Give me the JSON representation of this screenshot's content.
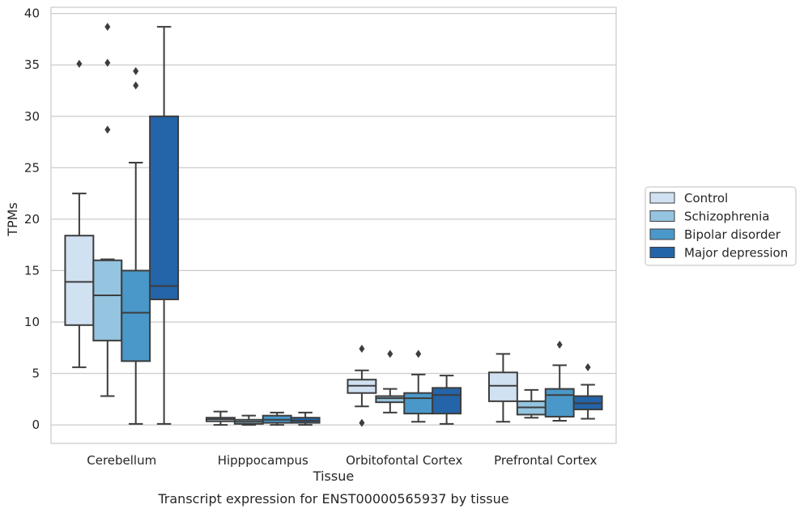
{
  "chart_data": {
    "type": "box",
    "title": "",
    "caption": "Transcript expression for ENST00000565937 by tissue",
    "xlabel": "Tissue",
    "ylabel": "TPMs",
    "ylim": [
      -1.8,
      40.6
    ],
    "yticks": [
      0,
      5,
      10,
      15,
      20,
      25,
      30,
      35,
      40
    ],
    "grid": "horizontal",
    "legend_position": "right",
    "categories": [
      "Cerebellum",
      "Hipppocampus",
      "Orbitofontal Cortex",
      "Prefrontal Cortex"
    ],
    "series": [
      {
        "name": "Control",
        "color": "#d0e1f2",
        "boxes": [
          {
            "whislo": 5.6,
            "q1": 9.7,
            "med": 13.9,
            "q3": 18.4,
            "whishi": 22.5,
            "fliers": [
              35.1
            ]
          },
          {
            "whislo": 0.0,
            "q1": 0.35,
            "med": 0.55,
            "q3": 0.7,
            "whishi": 1.3,
            "fliers": []
          },
          {
            "whislo": 1.8,
            "q1": 3.1,
            "med": 3.8,
            "q3": 4.4,
            "whishi": 5.3,
            "fliers": [
              7.4,
              0.2
            ]
          },
          {
            "whislo": 0.3,
            "q1": 2.3,
            "med": 3.8,
            "q3": 5.1,
            "whishi": 6.9,
            "fliers": []
          }
        ]
      },
      {
        "name": "Schizophrenia",
        "color": "#94c4df",
        "boxes": [
          {
            "whislo": 2.8,
            "q1": 8.2,
            "med": 12.6,
            "q3": 16.0,
            "whishi": 16.1,
            "fliers": [
              38.7,
              35.2,
              28.7
            ]
          },
          {
            "whislo": 0.0,
            "q1": 0.1,
            "med": 0.3,
            "q3": 0.5,
            "whishi": 0.9,
            "fliers": []
          },
          {
            "whislo": 1.2,
            "q1": 2.2,
            "med": 2.6,
            "q3": 2.8,
            "whishi": 3.5,
            "fliers": [
              6.9
            ]
          },
          {
            "whislo": 0.7,
            "q1": 1.0,
            "med": 1.7,
            "q3": 2.3,
            "whishi": 3.4,
            "fliers": []
          }
        ]
      },
      {
        "name": "Bipolar disorder",
        "color": "#4a98c9",
        "boxes": [
          {
            "whislo": 0.1,
            "q1": 6.2,
            "med": 10.9,
            "q3": 15.0,
            "whishi": 25.5,
            "fliers": [
              34.4,
              33.0
            ]
          },
          {
            "whislo": 0.0,
            "q1": 0.2,
            "med": 0.5,
            "q3": 0.9,
            "whishi": 1.2,
            "fliers": []
          },
          {
            "whislo": 0.3,
            "q1": 1.1,
            "med": 2.6,
            "q3": 3.1,
            "whishi": 4.9,
            "fliers": [
              6.9
            ]
          },
          {
            "whislo": 0.4,
            "q1": 0.8,
            "med": 2.9,
            "q3": 3.5,
            "whishi": 5.8,
            "fliers": [
              7.8
            ]
          }
        ]
      },
      {
        "name": "Major depression",
        "color": "#2464a8",
        "boxes": [
          {
            "whislo": 0.1,
            "q1": 12.2,
            "med": 13.5,
            "q3": 30.0,
            "whishi": 38.7,
            "fliers": []
          },
          {
            "whislo": 0.0,
            "q1": 0.2,
            "med": 0.4,
            "q3": 0.7,
            "whishi": 1.2,
            "fliers": []
          },
          {
            "whislo": 0.1,
            "q1": 1.1,
            "med": 2.9,
            "q3": 3.6,
            "whishi": 4.8,
            "fliers": []
          },
          {
            "whislo": 0.6,
            "q1": 1.5,
            "med": 2.1,
            "q3": 2.8,
            "whishi": 3.9,
            "fliers": [
              5.6
            ]
          }
        ]
      }
    ]
  }
}
